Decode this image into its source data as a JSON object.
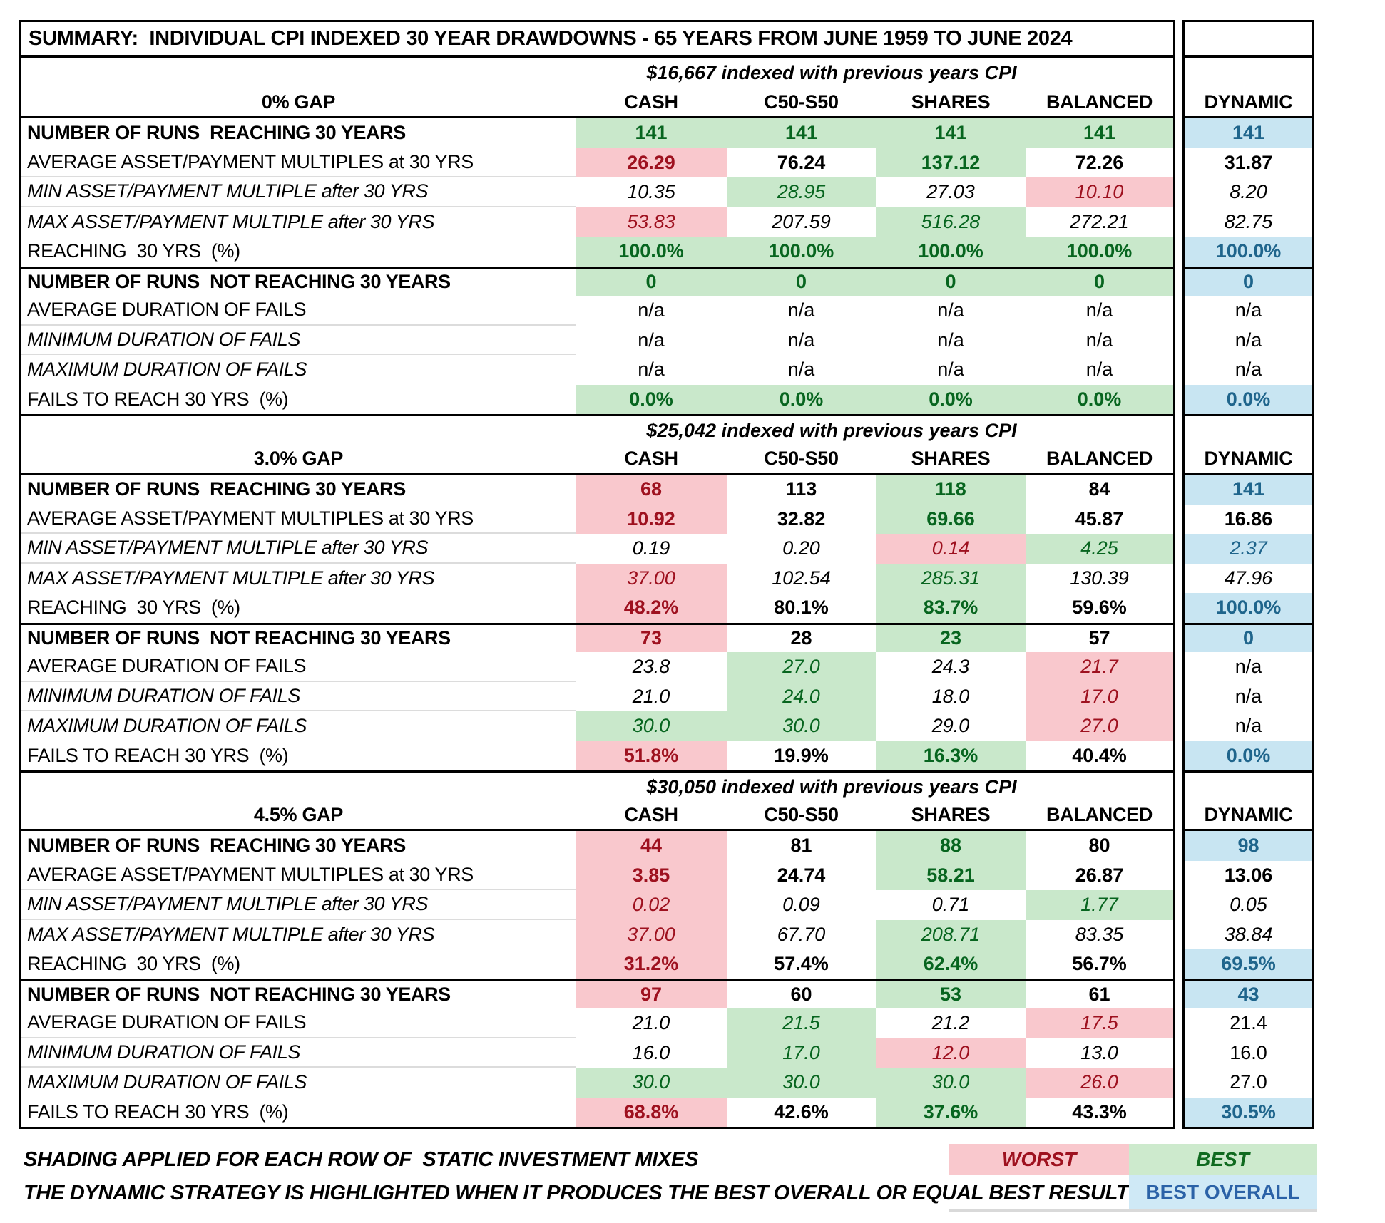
{
  "title": "SUMMARY:  INDIVIDUAL CPI INDEXED 30 YEAR DRAWDOWNS - 65 YEARS FROM JUNE 1959 TO JUNE 2024",
  "columns": [
    "CASH",
    "C50-S50",
    "SHARES",
    "BALANCED"
  ],
  "dynamic_label": "DYNAMIC",
  "colors": {
    "best_bg": "#c9e8cb",
    "best_text": "#07651f",
    "worst_bg": "#f9c8cd",
    "worst_text": "#9e111f",
    "best_overall_bg": "#c8e5f2",
    "best_overall_text": "#1f658c",
    "legend_overall_text": "#2b62a7",
    "separator_gray": "#dcdcdc"
  },
  "row_labels": [
    {
      "label": "NUMBER OF RUNS  REACHING 30 YEARS",
      "style": "b",
      "sep": false,
      "thick_top": false
    },
    {
      "label": "AVERAGE ASSET/PAYMENT MULTIPLES at 30 YRS",
      "style": "n",
      "sep": true,
      "thick_top": false
    },
    {
      "label": "MIN ASSET/PAYMENT MULTIPLE after 30 YRS",
      "style": "i",
      "sep": true,
      "thick_top": false
    },
    {
      "label": "MAX ASSET/PAYMENT MULTIPLE after 30 YRS",
      "style": "i",
      "sep": false,
      "thick_top": false
    },
    {
      "label": "REACHING  30 YRS  (%)",
      "style": "n",
      "sep": false,
      "thick_top": false
    },
    {
      "label": "NUMBER OF RUNS  NOT REACHING 30 YEARS",
      "style": "b",
      "sep": false,
      "thick_top": true
    },
    {
      "label": "AVERAGE DURATION OF FAILS",
      "style": "n",
      "sep": true,
      "thick_top": false
    },
    {
      "label": "MINIMUM DURATION OF FAILS",
      "style": "i",
      "sep": true,
      "thick_top": false
    },
    {
      "label": "MAXIMUM DURATION OF FAILS",
      "style": "i",
      "sep": false,
      "thick_top": false
    },
    {
      "label": "FAILS TO REACH 30 YRS  (%)",
      "style": "n",
      "sep": false,
      "thick_top": false
    }
  ],
  "sections": [
    {
      "gap": "0% GAP",
      "subtitle": "$16,667 indexed with previous years CPI",
      "rows": [
        {
          "cells": [
            [
              "141",
              "G",
              "b"
            ],
            [
              "141",
              "G",
              "b"
            ],
            [
              "141",
              "G",
              "b"
            ],
            [
              "141",
              "G",
              "b"
            ]
          ],
          "dyn": [
            "141",
            "B",
            "b"
          ]
        },
        {
          "cells": [
            [
              "26.29",
              "R",
              "b"
            ],
            [
              "76.24",
              "W",
              "b"
            ],
            [
              "137.12",
              "G",
              "b"
            ],
            [
              "72.26",
              "W",
              "b"
            ]
          ],
          "dyn": [
            "31.87",
            "W",
            "b"
          ]
        },
        {
          "cells": [
            [
              "10.35",
              "W",
              "i"
            ],
            [
              "28.95",
              "G",
              "i"
            ],
            [
              "27.03",
              "W",
              "i"
            ],
            [
              "10.10",
              "R",
              "i"
            ]
          ],
          "dyn": [
            "8.20",
            "W",
            "i"
          ]
        },
        {
          "cells": [
            [
              "53.83",
              "R",
              "i"
            ],
            [
              "207.59",
              "W",
              "i"
            ],
            [
              "516.28",
              "G",
              "i"
            ],
            [
              "272.21",
              "W",
              "i"
            ]
          ],
          "dyn": [
            "82.75",
            "W",
            "i"
          ]
        },
        {
          "cells": [
            [
              "100.0%",
              "G",
              "b"
            ],
            [
              "100.0%",
              "G",
              "b"
            ],
            [
              "100.0%",
              "G",
              "b"
            ],
            [
              "100.0%",
              "G",
              "b"
            ]
          ],
          "dyn": [
            "100.0%",
            "B",
            "b"
          ]
        },
        {
          "cells": [
            [
              "0",
              "G",
              "b"
            ],
            [
              "0",
              "G",
              "b"
            ],
            [
              "0",
              "G",
              "b"
            ],
            [
              "0",
              "G",
              "b"
            ]
          ],
          "dyn": [
            "0",
            "B",
            "b"
          ]
        },
        {
          "cells": [
            [
              "n/a",
              "W",
              "p"
            ],
            [
              "n/a",
              "W",
              "p"
            ],
            [
              "n/a",
              "W",
              "p"
            ],
            [
              "n/a",
              "W",
              "p"
            ]
          ],
          "dyn": [
            "n/a",
            "W",
            "p"
          ]
        },
        {
          "cells": [
            [
              "n/a",
              "W",
              "p"
            ],
            [
              "n/a",
              "W",
              "p"
            ],
            [
              "n/a",
              "W",
              "p"
            ],
            [
              "n/a",
              "W",
              "p"
            ]
          ],
          "dyn": [
            "n/a",
            "W",
            "p"
          ]
        },
        {
          "cells": [
            [
              "n/a",
              "W",
              "p"
            ],
            [
              "n/a",
              "W",
              "p"
            ],
            [
              "n/a",
              "W",
              "p"
            ],
            [
              "n/a",
              "W",
              "p"
            ]
          ],
          "dyn": [
            "n/a",
            "W",
            "p"
          ]
        },
        {
          "cells": [
            [
              "0.0%",
              "G",
              "b"
            ],
            [
              "0.0%",
              "G",
              "b"
            ],
            [
              "0.0%",
              "G",
              "b"
            ],
            [
              "0.0%",
              "G",
              "b"
            ]
          ],
          "dyn": [
            "0.0%",
            "B",
            "b"
          ]
        }
      ]
    },
    {
      "gap": "3.0% GAP",
      "subtitle": "$25,042 indexed with previous years CPI",
      "rows": [
        {
          "cells": [
            [
              "68",
              "R",
              "b"
            ],
            [
              "113",
              "W",
              "b"
            ],
            [
              "118",
              "G",
              "b"
            ],
            [
              "84",
              "W",
              "b"
            ]
          ],
          "dyn": [
            "141",
            "B",
            "b"
          ]
        },
        {
          "cells": [
            [
              "10.92",
              "R",
              "b"
            ],
            [
              "32.82",
              "W",
              "b"
            ],
            [
              "69.66",
              "G",
              "b"
            ],
            [
              "45.87",
              "W",
              "b"
            ]
          ],
          "dyn": [
            "16.86",
            "W",
            "b"
          ]
        },
        {
          "cells": [
            [
              "0.19",
              "W",
              "i"
            ],
            [
              "0.20",
              "W",
              "i"
            ],
            [
              "0.14",
              "R",
              "i"
            ],
            [
              "4.25",
              "G",
              "i"
            ]
          ],
          "dyn": [
            "2.37",
            "B",
            "i"
          ]
        },
        {
          "cells": [
            [
              "37.00",
              "R",
              "i"
            ],
            [
              "102.54",
              "W",
              "i"
            ],
            [
              "285.31",
              "G",
              "i"
            ],
            [
              "130.39",
              "W",
              "i"
            ]
          ],
          "dyn": [
            "47.96",
            "W",
            "i"
          ]
        },
        {
          "cells": [
            [
              "48.2%",
              "R",
              "b"
            ],
            [
              "80.1%",
              "W",
              "b"
            ],
            [
              "83.7%",
              "G",
              "b"
            ],
            [
              "59.6%",
              "W",
              "b"
            ]
          ],
          "dyn": [
            "100.0%",
            "B",
            "b"
          ]
        },
        {
          "cells": [
            [
              "73",
              "R",
              "b"
            ],
            [
              "28",
              "W",
              "b"
            ],
            [
              "23",
              "G",
              "b"
            ],
            [
              "57",
              "W",
              "b"
            ]
          ],
          "dyn": [
            "0",
            "B",
            "b"
          ]
        },
        {
          "cells": [
            [
              "23.8",
              "W",
              "i"
            ],
            [
              "27.0",
              "G",
              "i"
            ],
            [
              "24.3",
              "W",
              "i"
            ],
            [
              "21.7",
              "R",
              "i"
            ]
          ],
          "dyn": [
            "n/a",
            "W",
            "p"
          ]
        },
        {
          "cells": [
            [
              "21.0",
              "W",
              "i"
            ],
            [
              "24.0",
              "G",
              "i"
            ],
            [
              "18.0",
              "W",
              "i"
            ],
            [
              "17.0",
              "R",
              "i"
            ]
          ],
          "dyn": [
            "n/a",
            "W",
            "p"
          ]
        },
        {
          "cells": [
            [
              "30.0",
              "G",
              "i"
            ],
            [
              "30.0",
              "G",
              "i"
            ],
            [
              "29.0",
              "W",
              "i"
            ],
            [
              "27.0",
              "R",
              "i"
            ]
          ],
          "dyn": [
            "n/a",
            "W",
            "p"
          ]
        },
        {
          "cells": [
            [
              "51.8%",
              "R",
              "b"
            ],
            [
              "19.9%",
              "W",
              "b"
            ],
            [
              "16.3%",
              "G",
              "b"
            ],
            [
              "40.4%",
              "W",
              "b"
            ]
          ],
          "dyn": [
            "0.0%",
            "B",
            "b"
          ]
        }
      ]
    },
    {
      "gap": "4.5% GAP",
      "subtitle": "$30,050 indexed with previous years CPI",
      "rows": [
        {
          "cells": [
            [
              "44",
              "R",
              "b"
            ],
            [
              "81",
              "W",
              "b"
            ],
            [
              "88",
              "G",
              "b"
            ],
            [
              "80",
              "W",
              "b"
            ]
          ],
          "dyn": [
            "98",
            "B",
            "b"
          ]
        },
        {
          "cells": [
            [
              "3.85",
              "R",
              "b"
            ],
            [
              "24.74",
              "W",
              "b"
            ],
            [
              "58.21",
              "G",
              "b"
            ],
            [
              "26.87",
              "W",
              "b"
            ]
          ],
          "dyn": [
            "13.06",
            "W",
            "b"
          ]
        },
        {
          "cells": [
            [
              "0.02",
              "R",
              "i"
            ],
            [
              "0.09",
              "W",
              "i"
            ],
            [
              "0.71",
              "W",
              "i"
            ],
            [
              "1.77",
              "G",
              "i"
            ]
          ],
          "dyn": [
            "0.05",
            "W",
            "i"
          ]
        },
        {
          "cells": [
            [
              "37.00",
              "R",
              "i"
            ],
            [
              "67.70",
              "W",
              "i"
            ],
            [
              "208.71",
              "G",
              "i"
            ],
            [
              "83.35",
              "W",
              "i"
            ]
          ],
          "dyn": [
            "38.84",
            "W",
            "i"
          ]
        },
        {
          "cells": [
            [
              "31.2%",
              "R",
              "b"
            ],
            [
              "57.4%",
              "W",
              "b"
            ],
            [
              "62.4%",
              "G",
              "b"
            ],
            [
              "56.7%",
              "W",
              "b"
            ]
          ],
          "dyn": [
            "69.5%",
            "B",
            "b"
          ]
        },
        {
          "cells": [
            [
              "97",
              "R",
              "b"
            ],
            [
              "60",
              "W",
              "b"
            ],
            [
              "53",
              "G",
              "b"
            ],
            [
              "61",
              "W",
              "b"
            ]
          ],
          "dyn": [
            "43",
            "B",
            "b"
          ]
        },
        {
          "cells": [
            [
              "21.0",
              "W",
              "i"
            ],
            [
              "21.5",
              "G",
              "i"
            ],
            [
              "21.2",
              "W",
              "i"
            ],
            [
              "17.5",
              "R",
              "i"
            ]
          ],
          "dyn": [
            "21.4",
            "W",
            "p"
          ]
        },
        {
          "cells": [
            [
              "16.0",
              "W",
              "i"
            ],
            [
              "17.0",
              "G",
              "i"
            ],
            [
              "12.0",
              "R",
              "i"
            ],
            [
              "13.0",
              "W",
              "i"
            ]
          ],
          "dyn": [
            "16.0",
            "W",
            "p"
          ]
        },
        {
          "cells": [
            [
              "30.0",
              "G",
              "i"
            ],
            [
              "30.0",
              "G",
              "i"
            ],
            [
              "30.0",
              "G",
              "i"
            ],
            [
              "26.0",
              "R",
              "i"
            ]
          ],
          "dyn": [
            "27.0",
            "W",
            "p"
          ]
        },
        {
          "cells": [
            [
              "68.8%",
              "R",
              "b"
            ],
            [
              "42.6%",
              "W",
              "b"
            ],
            [
              "37.6%",
              "G",
              "b"
            ],
            [
              "43.3%",
              "W",
              "b"
            ]
          ],
          "dyn": [
            "30.5%",
            "B",
            "b"
          ]
        }
      ]
    }
  ],
  "legend": {
    "line1": "SHADING APPLIED FOR EACH ROW OF  STATIC INVESTMENT MIXES",
    "line2": "THE DYNAMIC STRATEGY IS HIGHLIGHTED WHEN IT PRODUCES THE BEST OVERALL OR EQUAL BEST RESULT",
    "worst": "WORST",
    "best": "BEST",
    "best_overall": "BEST OVERALL"
  }
}
